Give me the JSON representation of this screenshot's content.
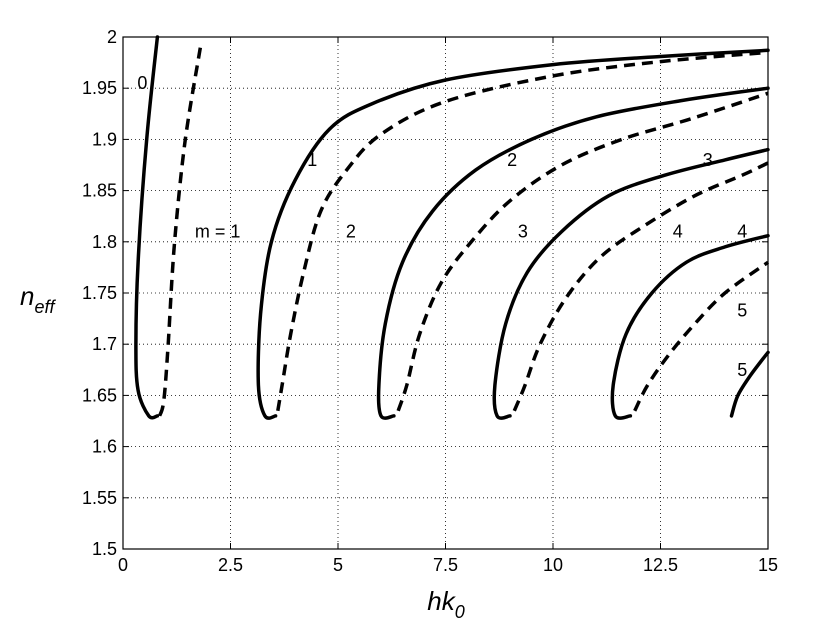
{
  "chart_data": {
    "type": "line",
    "xlabel": "hk",
    "xlabel_sub": "0",
    "ylabel": "n",
    "ylabel_sub": "eff",
    "xlim": [
      0,
      15
    ],
    "ylim": [
      1.5,
      2.0
    ],
    "grid": true,
    "x_ticks": [
      0,
      2.5,
      5,
      7.5,
      10,
      12.5,
      15
    ],
    "x_tick_labels": [
      "0",
      "2.5",
      "5",
      "7.5",
      "10",
      "12.5",
      "15"
    ],
    "y_ticks": [
      1.5,
      1.55,
      1.6,
      1.65,
      1.7,
      1.75,
      1.8,
      1.85,
      1.9,
      1.95,
      2.0
    ],
    "y_tick_labels": [
      "1.5",
      "1.55",
      "1.6",
      "1.65",
      "1.7",
      "1.75",
      "1.8",
      "1.85",
      "1.9",
      "1.95",
      "2"
    ],
    "series": [
      {
        "style": "solid",
        "points": [
          [
            0.8,
            2.0
          ],
          [
            0.55,
            1.9
          ],
          [
            0.35,
            1.78
          ],
          [
            0.3,
            1.7
          ],
          [
            0.35,
            1.655
          ],
          [
            0.6,
            1.63
          ],
          [
            0.8,
            1.63
          ]
        ]
      },
      {
        "style": "dashed",
        "points": [
          [
            0.85,
            1.63
          ],
          [
            0.95,
            1.645
          ],
          [
            1.05,
            1.7
          ],
          [
            1.2,
            1.8
          ],
          [
            1.45,
            1.9
          ],
          [
            1.8,
            1.99
          ]
        ]
      },
      {
        "style": "solid",
        "points": [
          [
            3.55,
            1.63
          ],
          [
            3.3,
            1.63
          ],
          [
            3.15,
            1.66
          ],
          [
            3.2,
            1.73
          ],
          [
            3.45,
            1.8
          ],
          [
            4.0,
            1.86
          ],
          [
            4.8,
            1.91
          ],
          [
            5.8,
            1.935
          ],
          [
            7.5,
            1.958
          ],
          [
            10.0,
            1.973
          ],
          [
            12.5,
            1.981
          ],
          [
            15.0,
            1.987
          ]
        ]
      },
      {
        "style": "dashed",
        "points": [
          [
            3.6,
            1.635
          ],
          [
            3.7,
            1.66
          ],
          [
            3.9,
            1.71
          ],
          [
            4.2,
            1.77
          ],
          [
            4.6,
            1.83
          ],
          [
            5.2,
            1.87
          ],
          [
            6.0,
            1.905
          ],
          [
            7.5,
            1.937
          ],
          [
            10.0,
            1.962
          ],
          [
            12.5,
            1.976
          ],
          [
            15.0,
            1.985
          ]
        ]
      },
      {
        "style": "solid",
        "points": [
          [
            6.3,
            1.63
          ],
          [
            6.0,
            1.63
          ],
          [
            5.95,
            1.66
          ],
          [
            6.1,
            1.72
          ],
          [
            6.5,
            1.78
          ],
          [
            7.2,
            1.83
          ],
          [
            8.2,
            1.87
          ],
          [
            9.5,
            1.9
          ],
          [
            11.0,
            1.922
          ],
          [
            13.0,
            1.938
          ],
          [
            15.0,
            1.95
          ]
        ]
      },
      {
        "style": "dashed",
        "points": [
          [
            6.4,
            1.635
          ],
          [
            6.6,
            1.66
          ],
          [
            6.9,
            1.71
          ],
          [
            7.4,
            1.76
          ],
          [
            8.1,
            1.8
          ],
          [
            9.0,
            1.84
          ],
          [
            10.2,
            1.875
          ],
          [
            11.6,
            1.9
          ],
          [
            13.2,
            1.92
          ],
          [
            15.0,
            1.945
          ]
        ]
      },
      {
        "style": "solid",
        "points": [
          [
            9.0,
            1.63
          ],
          [
            8.7,
            1.63
          ],
          [
            8.65,
            1.66
          ],
          [
            8.9,
            1.72
          ],
          [
            9.4,
            1.77
          ],
          [
            10.2,
            1.81
          ],
          [
            11.3,
            1.845
          ],
          [
            12.6,
            1.865
          ],
          [
            14.0,
            1.88
          ],
          [
            15.0,
            1.89
          ]
        ]
      },
      {
        "style": "dashed",
        "points": [
          [
            9.1,
            1.635
          ],
          [
            9.35,
            1.66
          ],
          [
            9.7,
            1.7
          ],
          [
            10.3,
            1.745
          ],
          [
            11.1,
            1.785
          ],
          [
            12.1,
            1.815
          ],
          [
            13.3,
            1.845
          ],
          [
            14.4,
            1.865
          ],
          [
            15.0,
            1.877
          ]
        ]
      },
      {
        "style": "solid",
        "points": [
          [
            11.8,
            1.63
          ],
          [
            11.45,
            1.63
          ],
          [
            11.4,
            1.66
          ],
          [
            11.7,
            1.71
          ],
          [
            12.3,
            1.75
          ],
          [
            13.1,
            1.78
          ],
          [
            14.0,
            1.795
          ],
          [
            15.0,
            1.806
          ]
        ]
      },
      {
        "style": "dashed",
        "points": [
          [
            11.9,
            1.635
          ],
          [
            12.2,
            1.66
          ],
          [
            12.7,
            1.69
          ],
          [
            13.3,
            1.72
          ],
          [
            14.0,
            1.75
          ],
          [
            15.0,
            1.78
          ]
        ]
      },
      {
        "style": "solid",
        "points": [
          [
            14.15,
            1.63
          ],
          [
            14.3,
            1.65
          ],
          [
            14.6,
            1.67
          ],
          [
            15.0,
            1.692
          ]
        ]
      }
    ],
    "annotations": [
      {
        "text": "0",
        "x": 0.45,
        "y": 1.955
      },
      {
        "text": "m = 1",
        "x": 2.2,
        "y": 1.81
      },
      {
        "text": "1",
        "x": 4.4,
        "y": 1.88
      },
      {
        "text": "2",
        "x": 5.3,
        "y": 1.81
      },
      {
        "text": "2",
        "x": 9.05,
        "y": 1.88
      },
      {
        "text": "3",
        "x": 9.3,
        "y": 1.81
      },
      {
        "text": "3",
        "x": 13.6,
        "y": 1.88
      },
      {
        "text": "4",
        "x": 12.9,
        "y": 1.81
      },
      {
        "text": "4",
        "x": 14.4,
        "y": 1.81
      },
      {
        "text": "5",
        "x": 14.4,
        "y": 1.733
      },
      {
        "text": "5",
        "x": 14.4,
        "y": 1.675
      }
    ]
  }
}
